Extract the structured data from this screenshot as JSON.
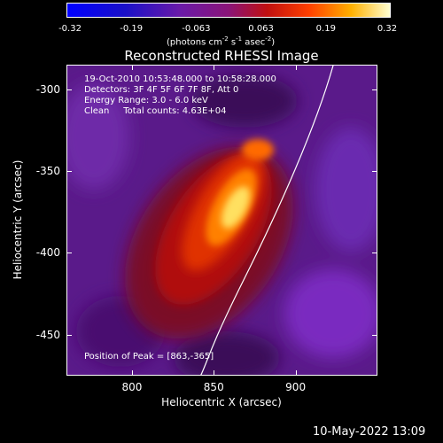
{
  "colorbar": {
    "tick_labels": [
      "-0.32",
      "-0.19",
      "-0.063",
      "0.063",
      "0.19",
      "0.32"
    ],
    "units_prefix": "(photons cm",
    "units_exp1": "-2",
    "units_mid": " s",
    "units_exp2": "-1",
    "units_mid2": " asec",
    "units_exp3": "-2",
    "units_suffix": ")",
    "range": [
      -0.32,
      0.32
    ]
  },
  "title": "Reconstructed RHESSI Image",
  "info": {
    "time_range": "19-Oct-2010 10:53:48.000 to 10:58:28.000",
    "detectors": "Detectors: 3F 4F 5F 6F 7F 8F, Att 0",
    "energy": "Energy Range: 3.0 - 6.0 keV",
    "clean": "Clean     Total counts: 4.63E+04"
  },
  "peak_text": "Position of Peak = [863,-365]",
  "axes": {
    "xlabel": "Heliocentric X (arcsec)",
    "ylabel": "Heliocentric Y (arcsec)",
    "x_ticks": [
      "800",
      "850",
      "900"
    ],
    "y_ticks": [
      "-300",
      "-350",
      "-400",
      "-450"
    ],
    "x_range": [
      760,
      950
    ],
    "y_range": [
      -285,
      -475
    ]
  },
  "colors": {
    "background": "#000000",
    "axis": "#ffffff",
    "limb": "#ffffff"
  },
  "footer_date": "10-May-2022 13:09"
}
